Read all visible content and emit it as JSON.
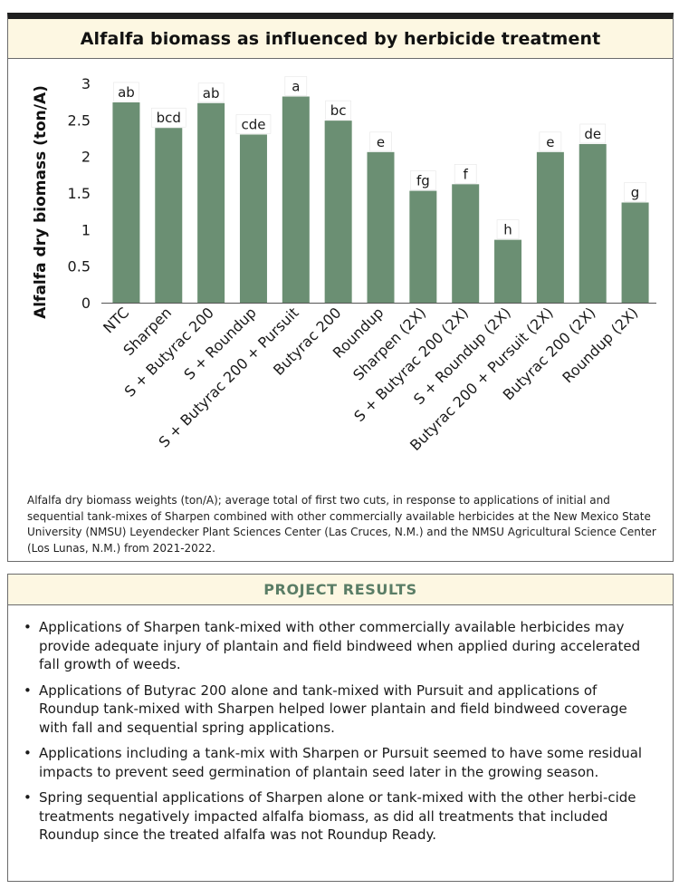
{
  "chart_data": {
    "type": "bar",
    "title": "Alfalfa biomass as influenced by herbicide treatment",
    "ylabel": "Alfalfa dry biomass (ton/A)",
    "xlabel": "",
    "ylim": [
      0,
      3
    ],
    "yticks": [
      "0",
      "0.5",
      "1",
      "1.5",
      "2",
      "2.5",
      "3"
    ],
    "grid": false,
    "bar_color": "#6b8f73",
    "categories": [
      "NTC",
      "Sharpen",
      "S + Butyrac 200",
      "S + Roundup",
      "S + Butyrac 200 + Pursuit",
      "Butyrac 200",
      "Roundup",
      "Sharpen (2X)",
      "S + Butyrac 200 (2X)",
      "S + Roundup (2X)",
      "Butyrac 200 + Pursuit (2X)",
      "Butyrac 200 (2X)",
      "Roundup (2X)"
    ],
    "values": [
      2.74,
      2.39,
      2.73,
      2.3,
      2.82,
      2.49,
      2.06,
      1.53,
      1.62,
      0.86,
      2.06,
      2.17,
      1.37
    ],
    "significance_letters": [
      "ab",
      "bcd",
      "ab",
      "cde",
      "a",
      "bc",
      "e",
      "fg",
      "f",
      "h",
      "e",
      "de",
      "g"
    ]
  },
  "caption": "Alfalfa dry biomass weights (ton/A); average total of first two cuts, in response to applications of initial and sequential tank-mixes of Sharpen combined with other commercially available herbicides at the New Mexico State University (NMSU) Leyendecker Plant Sciences Center (Las Cruces, N.M.) and the NMSU Agricultural Science Center (Los Lunas, N.M.) from 2021-2022.",
  "results": {
    "title": "PROJECT RESULTS",
    "bullet": "•",
    "items": [
      "Applications of Sharpen tank-mixed with other commercially available herbicides may provide adequate injury of plantain and field bindweed when applied during accelerated fall growth of weeds.",
      "Applications of Butyrac 200 alone and tank-mixed with Pursuit and applications of Roundup tank-mixed with Sharpen helped lower plantain and field bindweed coverage with fall and sequential spring applications.",
      "Applications including a tank-mix with Sharpen or Pursuit seemed to have some residual impacts to prevent seed germination of plantain seed later in the growing season.",
      "Spring sequential applications of Sharpen alone or tank-mixed with the other herbi-cide treatments negatively impacted alfalfa biomass, as did all treatments that included Roundup since the treated alfalfa was not Roundup Ready."
    ]
  },
  "colors": {
    "header_bg": "#fdf7e2",
    "results_title": "#5a7d66",
    "bar": "#6b8f73"
  }
}
